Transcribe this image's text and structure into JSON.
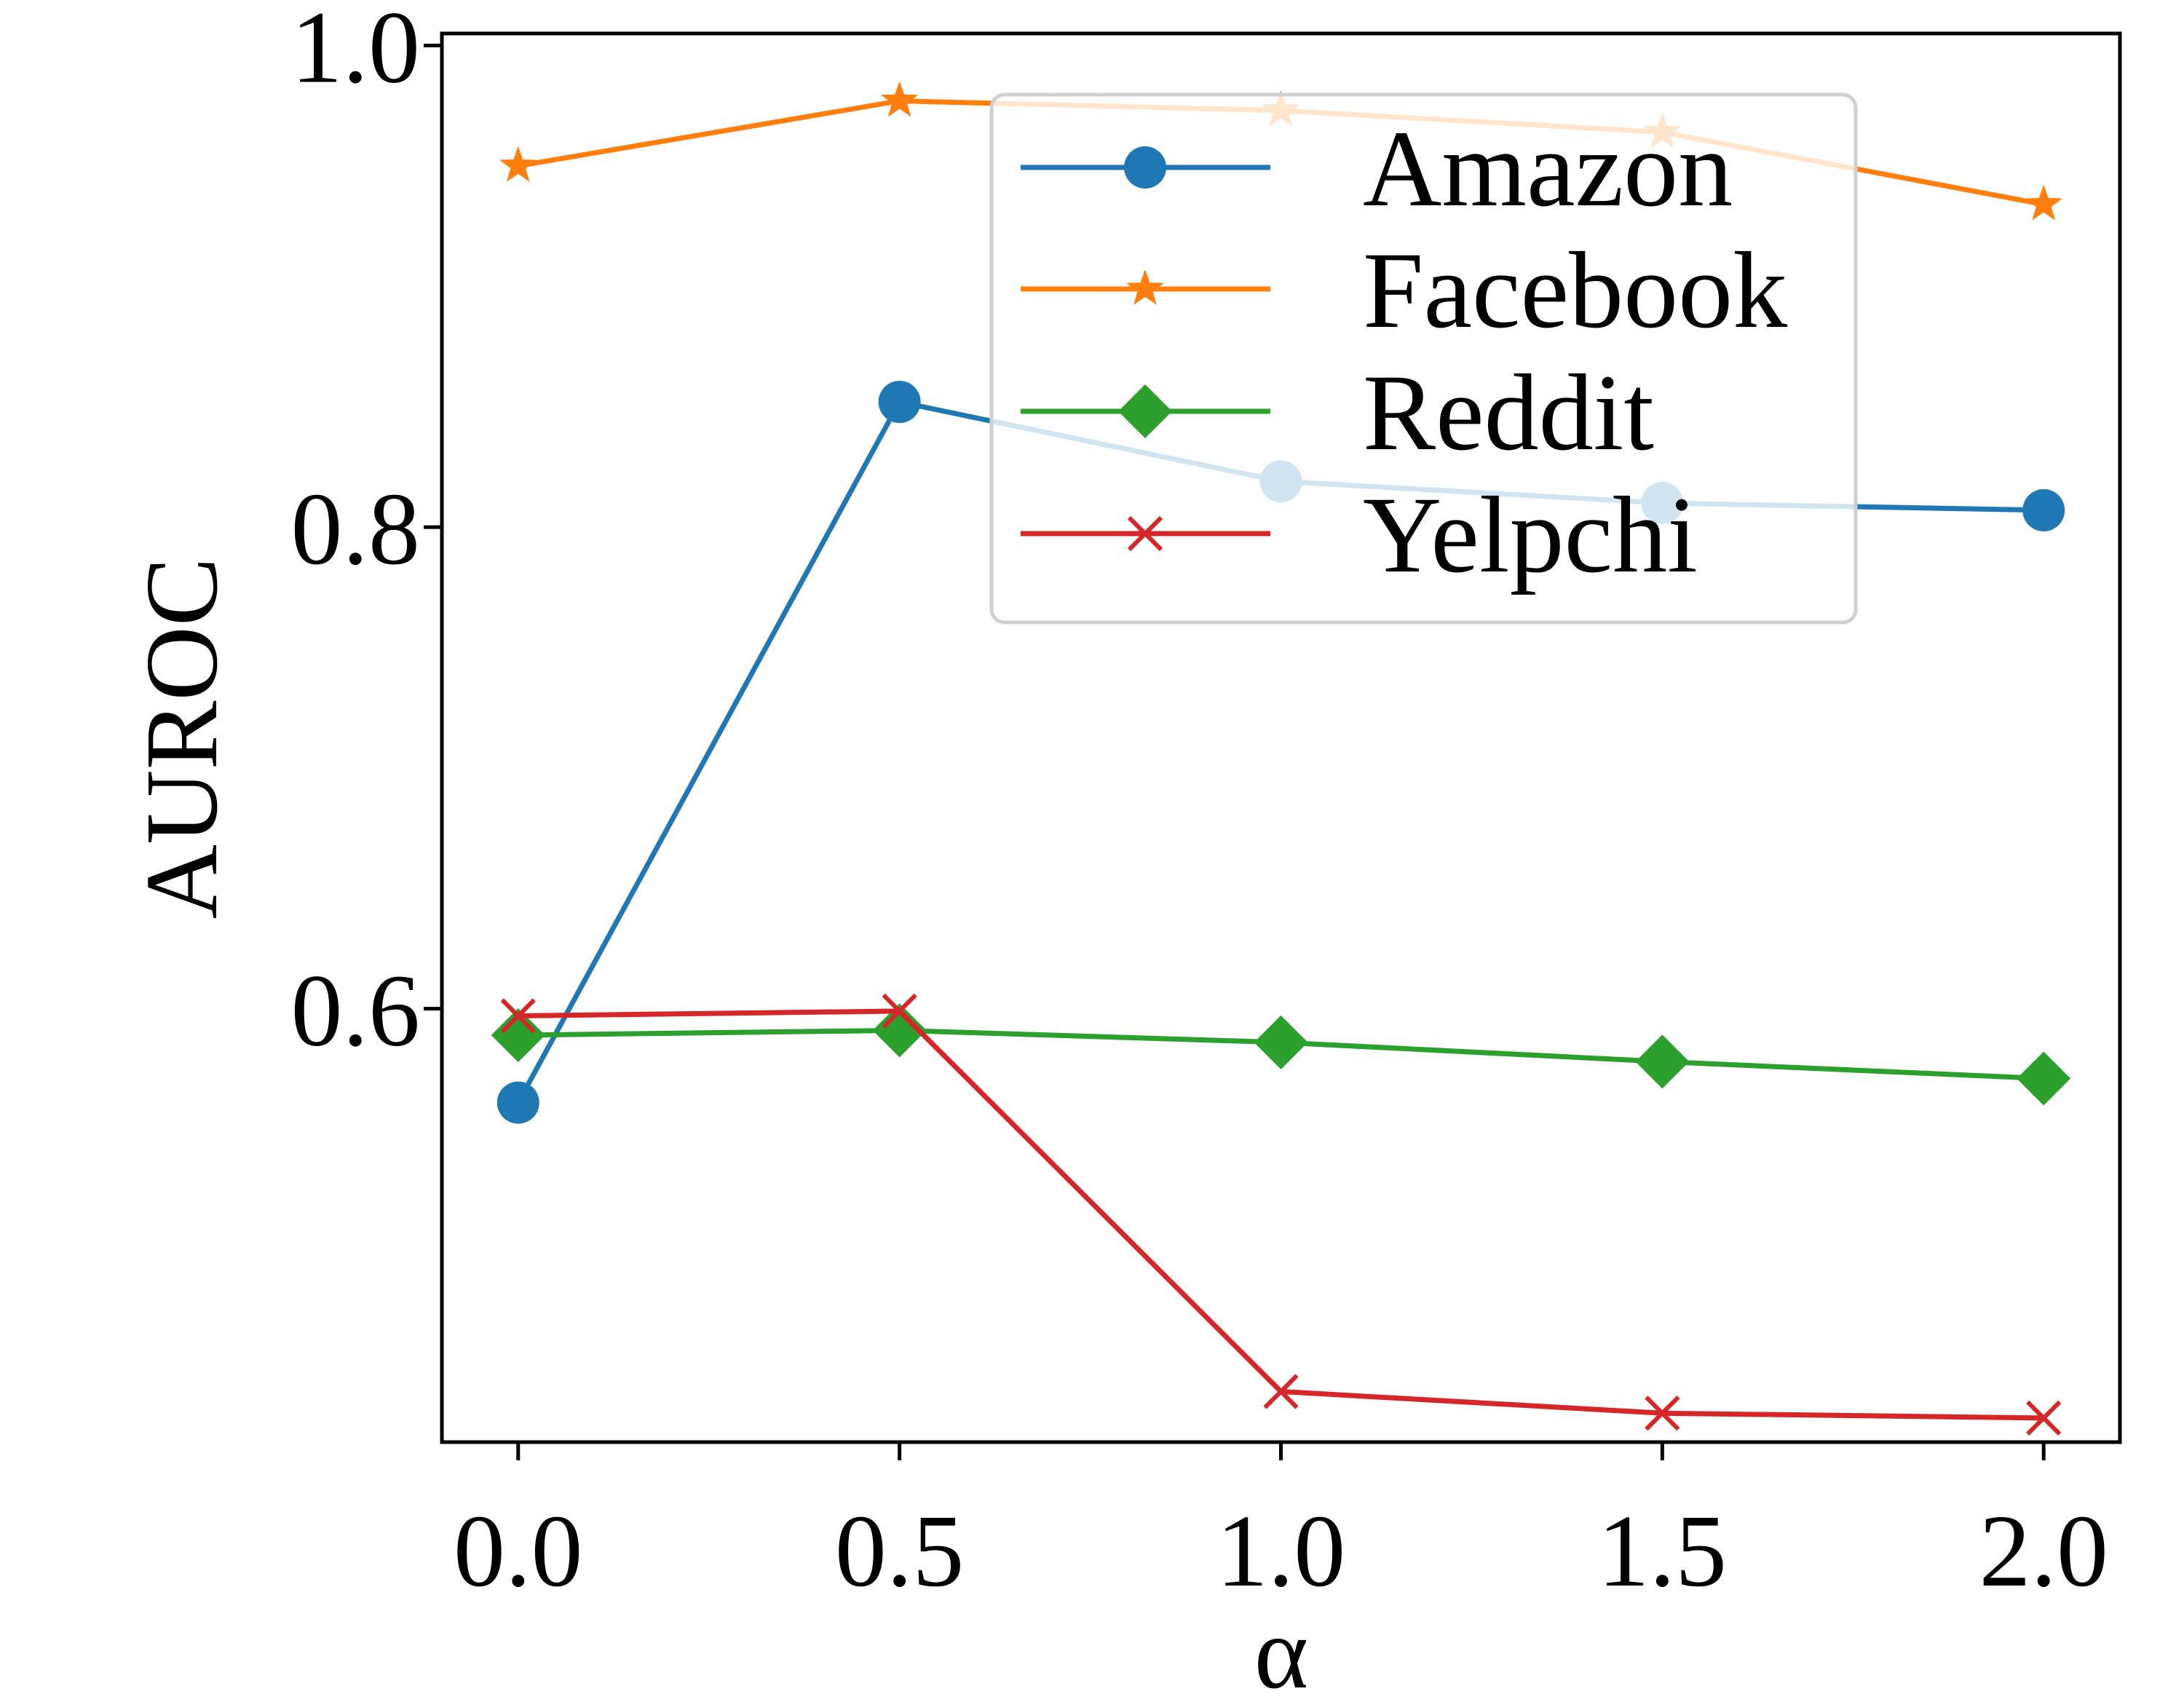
{
  "chart_data": {
    "type": "line",
    "xlabel": "α",
    "ylabel": "AUROC",
    "x": [
      0.0,
      0.5,
      1.0,
      1.5,
      2.0
    ],
    "xtick_labels": [
      "0.0",
      "0.5",
      "1.0",
      "1.5",
      "2.0"
    ],
    "yticks": [
      0.6,
      0.8,
      1.0
    ],
    "ytick_labels": [
      "0.6",
      "0.8",
      "1.0"
    ],
    "xlim": [
      -0.1,
      2.1
    ],
    "ylim": [
      0.42,
      1.005
    ],
    "grid": false,
    "legend_position": "top-right",
    "series": [
      {
        "name": "Amazon",
        "color": "#1f77b4",
        "marker": "circle",
        "values": [
          0.561,
          0.852,
          0.819,
          0.81,
          0.807
        ]
      },
      {
        "name": "Facebook",
        "color": "#ff7f0e",
        "marker": "star",
        "values": [
          0.95,
          0.977,
          0.973,
          0.964,
          0.934
        ]
      },
      {
        "name": "Reddit",
        "color": "#2ca02c",
        "marker": "diamond",
        "values": [
          0.589,
          0.591,
          0.586,
          0.578,
          0.571
        ]
      },
      {
        "name": "Yelpchi",
        "color": "#d62728",
        "marker": "x",
        "values": [
          0.597,
          0.599,
          0.441,
          0.432,
          0.43
        ]
      }
    ]
  }
}
